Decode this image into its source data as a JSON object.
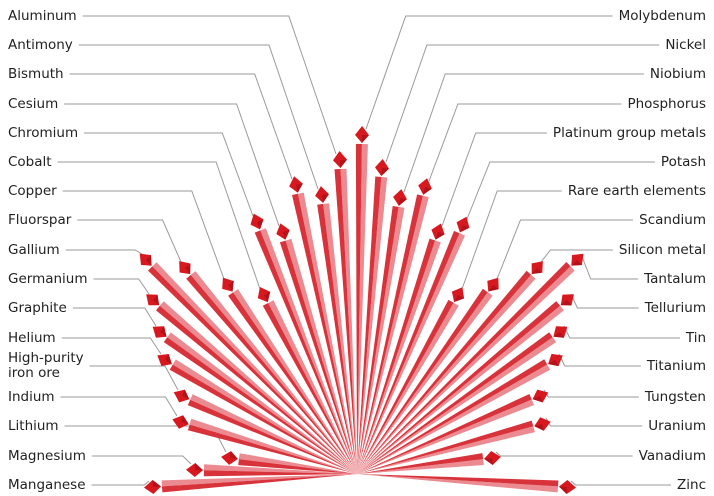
{
  "left": [
    "Aluminum",
    "Antimony",
    "Bismuth",
    "Cesium",
    "Chromium",
    "Cobalt",
    "Copper",
    "Fluorspar",
    "Gallium",
    "Germanium",
    "Graphite",
    "Helium",
    "High-purity iron ore",
    "Indium",
    "Lithium",
    "Magnesium",
    "Manganese"
  ],
  "right": [
    "Molybdenum",
    "Nickel",
    "Niobium",
    "Phosphorus",
    "Platinum group metals",
    "Potash",
    "Rare earth elements",
    "Scandium",
    "Silicon metal",
    "Tantalum",
    "Tellurium",
    "Tin",
    "Titanium",
    "Tungsten",
    "Uranium",
    "Vanadium",
    "Zinc"
  ]
}
